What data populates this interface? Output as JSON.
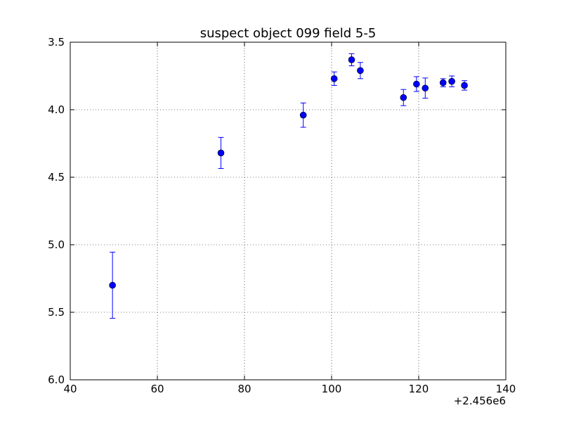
{
  "chart_data": {
    "type": "scatter",
    "title": "suspect object 099 field 5-5",
    "xlabel": "",
    "ylabel": "",
    "x_offset_label": "+2.456e6",
    "xlim": [
      40,
      140
    ],
    "ylim": [
      3.5,
      6.0
    ],
    "y_inverted": true,
    "grid": true,
    "x_ticks": [
      "40",
      "60",
      "80",
      "100",
      "120",
      "140"
    ],
    "y_ticks": [
      "3.5",
      "4.0",
      "4.5",
      "5.0",
      "5.5",
      "6.0"
    ],
    "marker_color": "#0000ff",
    "series": [
      {
        "points": [
          {
            "x": 49.7,
            "y": 5.3,
            "err": 0.245
          },
          {
            "x": 74.6,
            "y": 4.32,
            "err": 0.115
          },
          {
            "x": 93.5,
            "y": 4.04,
            "err": 0.09
          },
          {
            "x": 100.6,
            "y": 3.77,
            "err": 0.05
          },
          {
            "x": 104.6,
            "y": 3.63,
            "err": 0.045
          },
          {
            "x": 106.6,
            "y": 3.71,
            "err": 0.06
          },
          {
            "x": 116.5,
            "y": 3.91,
            "err": 0.06
          },
          {
            "x": 119.5,
            "y": 3.81,
            "err": 0.055
          },
          {
            "x": 121.5,
            "y": 3.84,
            "err": 0.075
          },
          {
            "x": 125.6,
            "y": 3.8,
            "err": 0.03
          },
          {
            "x": 127.6,
            "y": 3.79,
            "err": 0.04
          },
          {
            "x": 130.5,
            "y": 3.82,
            "err": 0.035
          }
        ]
      }
    ]
  }
}
